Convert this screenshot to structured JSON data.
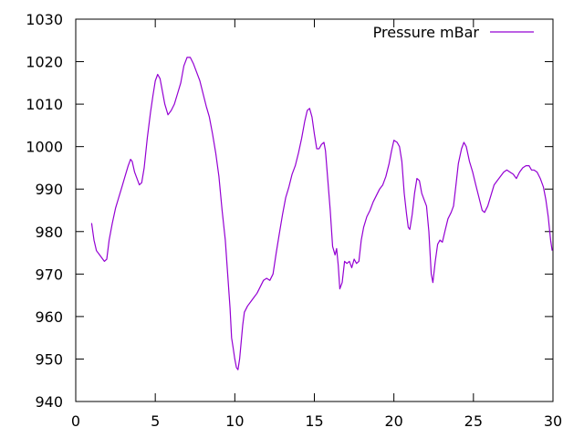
{
  "chart_data": {
    "type": "line",
    "title": "",
    "xlabel": "",
    "ylabel": "",
    "xlim": [
      0,
      30
    ],
    "ylim": [
      940,
      1030
    ],
    "xticks": [
      0,
      5,
      10,
      15,
      20,
      25,
      30
    ],
    "yticks": [
      940,
      950,
      960,
      970,
      980,
      990,
      1000,
      1010,
      1020,
      1030
    ],
    "grid": false,
    "legend": "top-right",
    "series": [
      {
        "name": "Pressure mBar",
        "color": "#9400d3",
        "points": [
          [
            1.0,
            982
          ],
          [
            1.15,
            978
          ],
          [
            1.3,
            975.5
          ],
          [
            1.5,
            974.5
          ],
          [
            1.7,
            973.5
          ],
          [
            1.8,
            973
          ],
          [
            1.95,
            973.5
          ],
          [
            2.1,
            978
          ],
          [
            2.3,
            982
          ],
          [
            2.5,
            985.5
          ],
          [
            2.7,
            988
          ],
          [
            2.9,
            990.5
          ],
          [
            3.1,
            993
          ],
          [
            3.3,
            995.5
          ],
          [
            3.45,
            997
          ],
          [
            3.55,
            996.5
          ],
          [
            3.7,
            994
          ],
          [
            3.85,
            992.5
          ],
          [
            4.0,
            991
          ],
          [
            4.15,
            991.5
          ],
          [
            4.3,
            995
          ],
          [
            4.5,
            1002
          ],
          [
            4.7,
            1008
          ],
          [
            4.85,
            1012
          ],
          [
            5.0,
            1015.5
          ],
          [
            5.15,
            1017
          ],
          [
            5.3,
            1016
          ],
          [
            5.45,
            1013
          ],
          [
            5.6,
            1010
          ],
          [
            5.8,
            1007.5
          ],
          [
            6.0,
            1008.5
          ],
          [
            6.2,
            1010
          ],
          [
            6.4,
            1012.5
          ],
          [
            6.6,
            1015
          ],
          [
            6.8,
            1019
          ],
          [
            7.0,
            1021
          ],
          [
            7.2,
            1021
          ],
          [
            7.4,
            1019.5
          ],
          [
            7.6,
            1017.5
          ],
          [
            7.8,
            1015.5
          ],
          [
            8.0,
            1012.5
          ],
          [
            8.2,
            1009.5
          ],
          [
            8.4,
            1007
          ],
          [
            8.6,
            1003
          ],
          [
            8.8,
            998.5
          ],
          [
            9.0,
            993
          ],
          [
            9.2,
            985
          ],
          [
            9.4,
            978
          ],
          [
            9.55,
            970
          ],
          [
            9.7,
            962
          ],
          [
            9.8,
            955
          ],
          [
            9.9,
            952.5
          ],
          [
            10.0,
            950
          ],
          [
            10.1,
            948
          ],
          [
            10.2,
            947.5
          ],
          [
            10.3,
            950
          ],
          [
            10.4,
            954
          ],
          [
            10.5,
            958
          ],
          [
            10.6,
            961
          ],
          [
            10.8,
            962.5
          ],
          [
            11.0,
            963.5
          ],
          [
            11.2,
            964.5
          ],
          [
            11.4,
            965.5
          ],
          [
            11.6,
            967
          ],
          [
            11.8,
            968.5
          ],
          [
            12.0,
            969
          ],
          [
            12.2,
            968.5
          ],
          [
            12.4,
            970
          ],
          [
            12.6,
            975
          ],
          [
            12.8,
            979.5
          ],
          [
            13.0,
            984
          ],
          [
            13.2,
            988
          ],
          [
            13.4,
            990.5
          ],
          [
            13.6,
            993.5
          ],
          [
            13.8,
            995.5
          ],
          [
            14.0,
            998.5
          ],
          [
            14.2,
            1002
          ],
          [
            14.4,
            1006
          ],
          [
            14.55,
            1008.5
          ],
          [
            14.7,
            1009
          ],
          [
            14.85,
            1007
          ],
          [
            15.0,
            1003
          ],
          [
            15.15,
            999.5
          ],
          [
            15.3,
            999.5
          ],
          [
            15.45,
            1000.5
          ],
          [
            15.6,
            1001
          ],
          [
            15.7,
            999
          ],
          [
            15.85,
            992
          ],
          [
            16.0,
            985
          ],
          [
            16.15,
            976.5
          ],
          [
            16.3,
            974.5
          ],
          [
            16.4,
            976
          ],
          [
            16.5,
            972
          ],
          [
            16.6,
            966.5
          ],
          [
            16.75,
            968
          ],
          [
            16.9,
            973
          ],
          [
            17.05,
            972.5
          ],
          [
            17.2,
            973
          ],
          [
            17.35,
            971.5
          ],
          [
            17.5,
            973.5
          ],
          [
            17.65,
            972.5
          ],
          [
            17.8,
            973
          ],
          [
            17.95,
            978
          ],
          [
            18.1,
            981
          ],
          [
            18.3,
            983.5
          ],
          [
            18.5,
            985
          ],
          [
            18.7,
            987
          ],
          [
            18.9,
            988.5
          ],
          [
            19.1,
            990
          ],
          [
            19.3,
            991
          ],
          [
            19.5,
            993
          ],
          [
            19.7,
            996
          ],
          [
            19.85,
            999
          ],
          [
            20.0,
            1001.5
          ],
          [
            20.2,
            1001
          ],
          [
            20.35,
            1000
          ],
          [
            20.5,
            996.5
          ],
          [
            20.65,
            989
          ],
          [
            20.8,
            984
          ],
          [
            20.9,
            981
          ],
          [
            21.0,
            980.5
          ],
          [
            21.15,
            984
          ],
          [
            21.3,
            989
          ],
          [
            21.45,
            992.5
          ],
          [
            21.6,
            992
          ],
          [
            21.75,
            989
          ],
          [
            21.9,
            987.5
          ],
          [
            22.05,
            986
          ],
          [
            22.2,
            980
          ],
          [
            22.35,
            970
          ],
          [
            22.45,
            968
          ],
          [
            22.6,
            973
          ],
          [
            22.75,
            977
          ],
          [
            22.9,
            978
          ],
          [
            23.05,
            977.5
          ],
          [
            23.2,
            980
          ],
          [
            23.4,
            983
          ],
          [
            23.6,
            984.5
          ],
          [
            23.75,
            986
          ],
          [
            23.9,
            991
          ],
          [
            24.05,
            996
          ],
          [
            24.25,
            999.5
          ],
          [
            24.4,
            1001
          ],
          [
            24.55,
            1000
          ],
          [
            24.75,
            996.5
          ],
          [
            24.95,
            994
          ],
          [
            25.15,
            991
          ],
          [
            25.35,
            988
          ],
          [
            25.55,
            985
          ],
          [
            25.7,
            984.5
          ],
          [
            25.9,
            986
          ],
          [
            26.1,
            988.5
          ],
          [
            26.3,
            991
          ],
          [
            26.5,
            992
          ],
          [
            26.7,
            993
          ],
          [
            26.9,
            994
          ],
          [
            27.1,
            994.5
          ],
          [
            27.3,
            994
          ],
          [
            27.5,
            993.5
          ],
          [
            27.7,
            992.5
          ],
          [
            27.9,
            994
          ],
          [
            28.1,
            995
          ],
          [
            28.3,
            995.5
          ],
          [
            28.5,
            995.5
          ],
          [
            28.65,
            994.5
          ],
          [
            28.8,
            994.5
          ],
          [
            29.0,
            994
          ],
          [
            29.2,
            992.5
          ],
          [
            29.4,
            990.5
          ],
          [
            29.55,
            987.5
          ],
          [
            29.7,
            983.5
          ],
          [
            29.85,
            978
          ],
          [
            29.95,
            975.5
          ]
        ]
      }
    ]
  }
}
